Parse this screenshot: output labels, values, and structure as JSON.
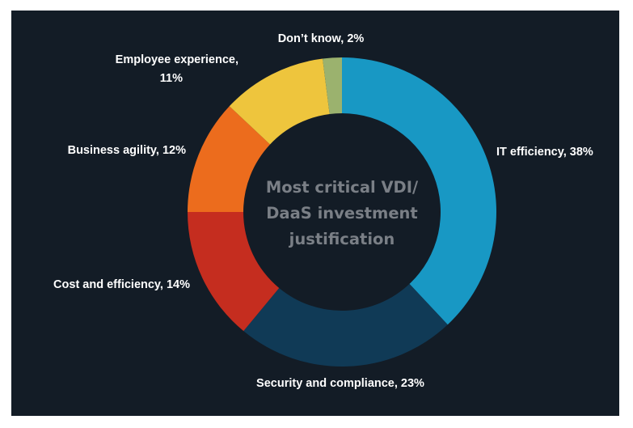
{
  "chart_data": {
    "type": "pie",
    "variant": "donut",
    "center_title": [
      "Most critical VDI/",
      "DaaS investment",
      "justification"
    ],
    "slices": [
      {
        "label": "IT efficiency, 38%",
        "name": "IT efficiency",
        "value": 38,
        "color": "#1898c4"
      },
      {
        "label": "Security and compliance, 23%",
        "name": "Security and compliance",
        "value": 23,
        "color": "#103a56"
      },
      {
        "label": "Cost and efficiency, 14%",
        "name": "Cost and efficiency",
        "value": 14,
        "color": "#c52d1f"
      },
      {
        "label": "Business agility, 12%",
        "name": "Business agility",
        "value": 12,
        "color": "#ec6c1d"
      },
      {
        "label": [
          "Employee experience,",
          "11%"
        ],
        "name": "Employee experience",
        "value": 11,
        "color": "#eec53d"
      },
      {
        "label": "Don’t know, 2%",
        "name": "Don’t know",
        "value": 2,
        "color": "#9bb26e"
      }
    ]
  }
}
